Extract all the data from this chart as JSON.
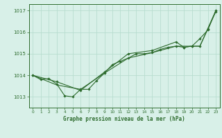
{
  "title": "Graphe pression niveau de la mer (hPa)",
  "background_color": "#d8f0e8",
  "grid_color": "#b8ddd0",
  "line_color": "#2d6b2d",
  "xlim": [
    -0.5,
    23.5
  ],
  "ylim": [
    1012.5,
    1017.3
  ],
  "yticks": [
    1013,
    1014,
    1015,
    1016,
    1017
  ],
  "xticks": [
    0,
    1,
    2,
    3,
    4,
    5,
    6,
    7,
    8,
    9,
    10,
    11,
    12,
    13,
    14,
    15,
    16,
    17,
    18,
    19,
    20,
    21,
    22,
    23
  ],
  "series1": {
    "x": [
      0,
      1,
      2,
      3,
      4,
      5,
      6,
      7,
      8,
      9,
      10,
      11,
      12,
      13,
      14,
      15,
      16,
      17,
      18,
      19,
      20,
      21,
      22,
      23
    ],
    "y": [
      1014.0,
      1013.8,
      1013.85,
      1013.6,
      1013.05,
      1013.0,
      1013.35,
      1013.35,
      1013.75,
      1014.1,
      1014.5,
      1014.65,
      1014.8,
      1015.0,
      1015.0,
      1015.05,
      1015.2,
      1015.3,
      1015.35,
      1015.3,
      1015.35,
      1015.7,
      1016.1,
      1017.0
    ]
  },
  "series2": {
    "x": [
      0,
      3,
      6,
      9,
      12,
      15,
      18,
      21,
      23
    ],
    "y": [
      1014.0,
      1013.55,
      1013.35,
      1014.1,
      1014.8,
      1015.05,
      1015.35,
      1015.35,
      1017.0
    ]
  },
  "series3": {
    "x": [
      0,
      3,
      6,
      9,
      12,
      15,
      18,
      19,
      20,
      21,
      22,
      23
    ],
    "y": [
      1014.0,
      1013.7,
      1013.3,
      1014.15,
      1015.0,
      1015.15,
      1015.55,
      1015.3,
      1015.35,
      1015.35,
      1016.15,
      1016.95
    ]
  }
}
